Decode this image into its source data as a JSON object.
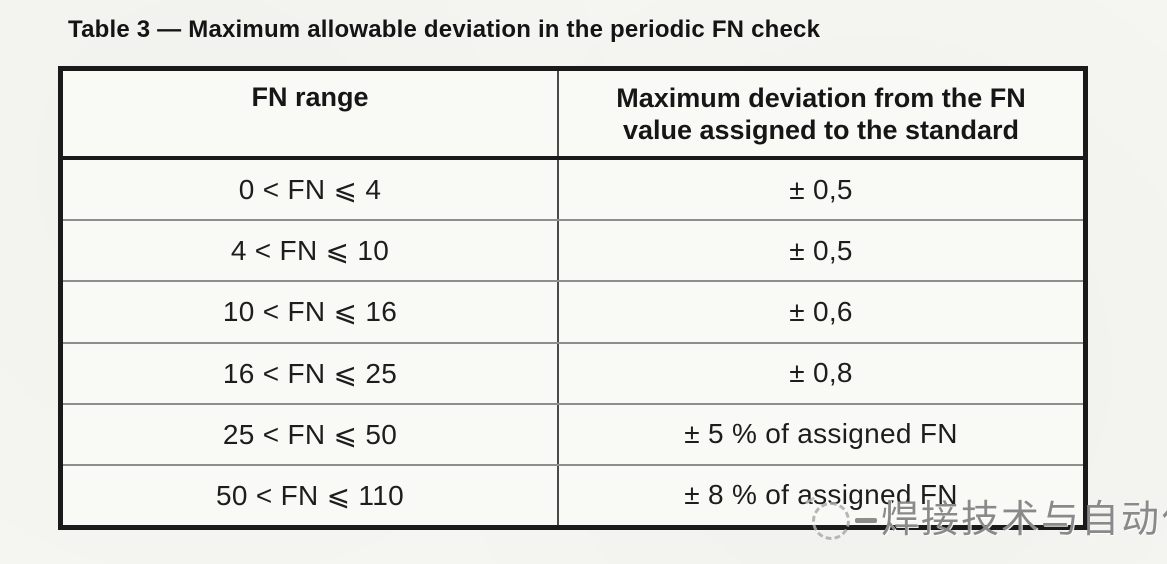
{
  "page": {
    "title": "Table 3 — Maximum allowable deviation in the periodic FN check"
  },
  "table": {
    "columns": [
      {
        "header": "FN range"
      },
      {
        "header": "Maximum deviation from the FN value assigned to the standard"
      }
    ],
    "rows": [
      {
        "fn_range": "0 < FN ⩽ 4",
        "max_deviation": "± 0,5"
      },
      {
        "fn_range": "4 < FN ⩽ 10",
        "max_deviation": "± 0,5"
      },
      {
        "fn_range": "10 < FN ⩽ 16",
        "max_deviation": "± 0,6"
      },
      {
        "fn_range": "16 < FN ⩽ 25",
        "max_deviation": "± 0,8"
      },
      {
        "fn_range": "25 < FN ⩽ 50",
        "max_deviation": "± 5 % of assigned FN"
      },
      {
        "fn_range": "50 < FN ⩽ 110",
        "max_deviation": "± 8 % of assigned FN"
      }
    ]
  },
  "watermark": {
    "text": "焊接技术与自动化"
  },
  "colors": {
    "ink": "#1c1c1c",
    "heavy_border": "#1a1a1a",
    "light_border": "#8e8e8e",
    "watermark_gray": "#8a8a8a"
  }
}
